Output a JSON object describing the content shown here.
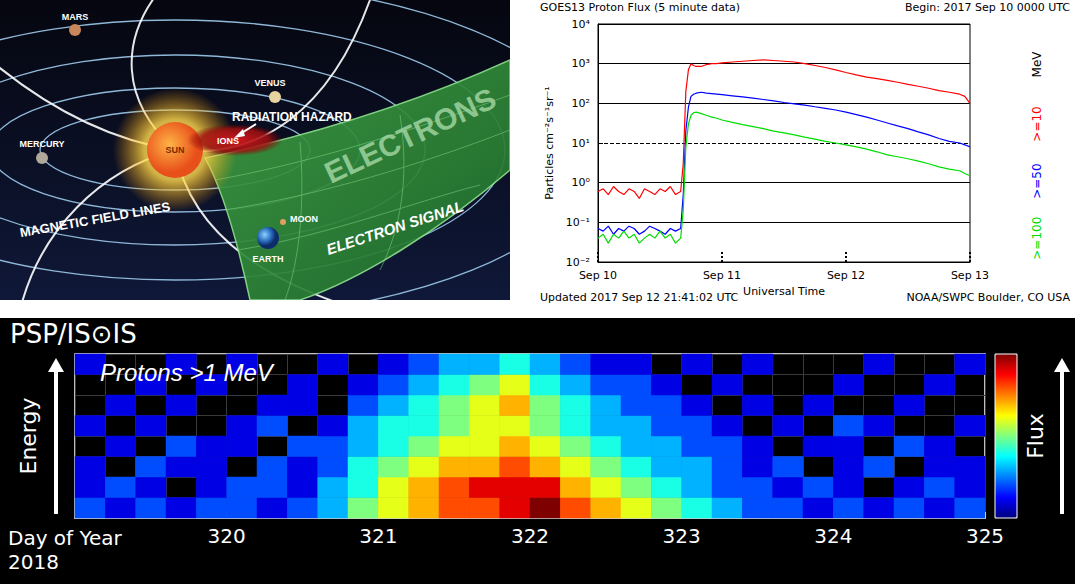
{
  "diagram": {
    "labels": {
      "mars": "MARS",
      "venus": "VENUS",
      "mercury": "MERCURY",
      "sun": "SUN",
      "ions": "IONS",
      "radiation_hazard": "RADIATION HAZARD",
      "magnetic_field_lines": "MAGNETIC FIELD LINES",
      "electrons": "ELECTRONS",
      "moon": "MOON",
      "earth": "EARTH",
      "electron_signal": "ELECTRON SIGNAL"
    }
  },
  "chart_data": [
    {
      "type": "line",
      "title": "GOES13 Proton Flux (5 minute data)",
      "subtitle": "Begin: 2017 Sep 10 0000 UTC",
      "footer_left": "Updated 2017 Sep 12 21:41:02 UTC",
      "footer_right": "NOAA/SWPC Boulder, CO USA",
      "xlabel": "Universal Time",
      "ylabel": "Particles cm⁻²s⁻¹sr⁻¹",
      "series_unit": "MeV",
      "log": "y",
      "grid": true,
      "threshold": 10,
      "xlim": [
        0,
        72
      ],
      "xticks": [
        {
          "value": 0,
          "label": "Sep 10"
        },
        {
          "value": 24,
          "label": "Sep 11"
        },
        {
          "value": 48,
          "label": "Sep 12"
        },
        {
          "value": 72,
          "label": "Sep 13"
        }
      ],
      "ylim": [
        0.01,
        10000
      ],
      "yticks": [
        {
          "value": 0.01,
          "label": "10⁻²"
        },
        {
          "value": 0.1,
          "label": "10⁻¹"
        },
        {
          "value": 1,
          "label": "10⁰"
        },
        {
          "value": 10,
          "label": "10¹"
        },
        {
          "value": 100,
          "label": "10²"
        },
        {
          "value": 1000,
          "label": "10³"
        },
        {
          "value": 10000,
          "label": "10⁴"
        }
      ],
      "x": [
        0,
        1,
        2,
        3,
        4,
        5,
        6,
        7,
        8,
        9,
        10,
        11,
        12,
        13,
        14,
        15,
        16,
        16.5,
        17,
        17.5,
        18,
        18.5,
        19,
        20,
        21,
        22,
        23,
        24,
        26,
        28,
        30,
        32,
        34,
        36,
        38,
        40,
        42,
        44,
        46,
        48,
        50,
        52,
        54,
        56,
        58,
        60,
        62,
        64,
        66,
        68,
        70,
        71,
        72
      ],
      "series": [
        {
          "name": ">=10",
          "color": "#ff0000",
          "values": [
            0.6,
            0.7,
            0.5,
            0.8,
            0.6,
            0.5,
            0.7,
            0.6,
            0.4,
            0.7,
            0.6,
            0.5,
            0.7,
            0.6,
            0.8,
            0.5,
            0.6,
            3,
            200,
            700,
            1000,
            900,
            850,
            850,
            950,
            1000,
            1000,
            1050,
            1100,
            1150,
            1200,
            1250,
            1200,
            1150,
            1100,
            1000,
            900,
            800,
            700,
            600,
            520,
            460,
            420,
            380,
            340,
            300,
            270,
            240,
            210,
            190,
            170,
            150,
            100
          ]
        },
        {
          "name": ">=50",
          "color": "#0000ff",
          "values": [
            0.07,
            0.06,
            0.08,
            0.05,
            0.07,
            0.06,
            0.08,
            0.07,
            0.05,
            0.06,
            0.08,
            0.07,
            0.06,
            0.05,
            0.07,
            0.06,
            0.07,
            0.5,
            20,
            80,
            150,
            170,
            180,
            190,
            180,
            175,
            170,
            165,
            155,
            145,
            135,
            125,
            115,
            105,
            97,
            90,
            82,
            75,
            68,
            60,
            52,
            45,
            38,
            32,
            27,
            23,
            19,
            16,
            13,
            11,
            10,
            9,
            8
          ]
        },
        {
          "name": ">=100",
          "color": "#00dd00",
          "values": [
            0.04,
            0.05,
            0.03,
            0.05,
            0.04,
            0.06,
            0.04,
            0.05,
            0.03,
            0.04,
            0.05,
            0.04,
            0.06,
            0.04,
            0.05,
            0.03,
            0.04,
            0.2,
            8,
            30,
            50,
            58,
            60,
            55,
            50,
            45,
            42,
            38,
            33,
            29,
            26,
            23,
            20,
            18,
            16,
            14,
            12.5,
            11,
            10,
            9,
            8,
            7,
            6,
            5,
            4.5,
            4,
            3.5,
            3,
            2.5,
            2.2,
            2,
            1.7,
            1.5
          ]
        }
      ]
    },
    {
      "type": "heatmap",
      "title": "PSP/IS⊙IS",
      "annotation": "Protons >1 MeV",
      "xlabel": "Day of Year\n2018",
      "ylabel": "Energy",
      "colorbar_label": "Flux",
      "grid": true,
      "tick_labels": "x",
      "xlim": [
        319,
        325
      ],
      "xticks": [
        320,
        321,
        322,
        323,
        324,
        325
      ],
      "x_bins": [
        319,
        319.2,
        319.4,
        319.6,
        319.8,
        320,
        320.2,
        320.4,
        320.6,
        320.8,
        321,
        321.2,
        321.4,
        321.6,
        321.8,
        322,
        322.2,
        322.4,
        322.6,
        322.8,
        323,
        323.2,
        323.4,
        323.6,
        323.8,
        324,
        324.2,
        324.4,
        324.6,
        324.8,
        325
      ],
      "color_range": [
        0,
        10
      ],
      "cells": [
        [
          2,
          1,
          2,
          1,
          2,
          2,
          1,
          2,
          3,
          5,
          6,
          7,
          8,
          8,
          9,
          10,
          8,
          7,
          6,
          5,
          4,
          3,
          2,
          2,
          1,
          2,
          1,
          2,
          1,
          2
        ],
        [
          1,
          2,
          1,
          null,
          1,
          2,
          2,
          1,
          3,
          4,
          6,
          7,
          8,
          9,
          9,
          9,
          7,
          6,
          5,
          4,
          3,
          2,
          2,
          1,
          2,
          1,
          null,
          1,
          2,
          1
        ],
        [
          1,
          null,
          2,
          1,
          1,
          null,
          2,
          1,
          2,
          4,
          5,
          6,
          7,
          7,
          8,
          7,
          6,
          5,
          4,
          3,
          3,
          2,
          1,
          2,
          null,
          1,
          2,
          null,
          1,
          1
        ],
        [
          null,
          1,
          null,
          2,
          1,
          1,
          null,
          2,
          2,
          3,
          4,
          5,
          6,
          6,
          7,
          6,
          5,
          4,
          3,
          3,
          2,
          2,
          1,
          null,
          1,
          1,
          null,
          2,
          1,
          null
        ],
        [
          1,
          null,
          1,
          null,
          null,
          1,
          2,
          null,
          1,
          3,
          4,
          4,
          5,
          6,
          6,
          5,
          4,
          3,
          3,
          2,
          2,
          1,
          null,
          1,
          null,
          2,
          1,
          null,
          null,
          1
        ],
        [
          null,
          1,
          null,
          1,
          null,
          null,
          1,
          1,
          null,
          2,
          3,
          4,
          5,
          6,
          7,
          5,
          4,
          3,
          2,
          2,
          1,
          null,
          1,
          null,
          1,
          null,
          null,
          1,
          null,
          null
        ],
        [
          null,
          null,
          1,
          null,
          1,
          null,
          null,
          1,
          null,
          1,
          2,
          3,
          4,
          5,
          6,
          4,
          3,
          2,
          2,
          1,
          null,
          1,
          null,
          null,
          null,
          1,
          null,
          null,
          1,
          null
        ],
        [
          1,
          null,
          null,
          1,
          null,
          1,
          null,
          null,
          1,
          null,
          1,
          2,
          3,
          3,
          4,
          3,
          2,
          1,
          1,
          null,
          1,
          null,
          1,
          null,
          null,
          null,
          1,
          null,
          null,
          1
        ]
      ]
    }
  ]
}
